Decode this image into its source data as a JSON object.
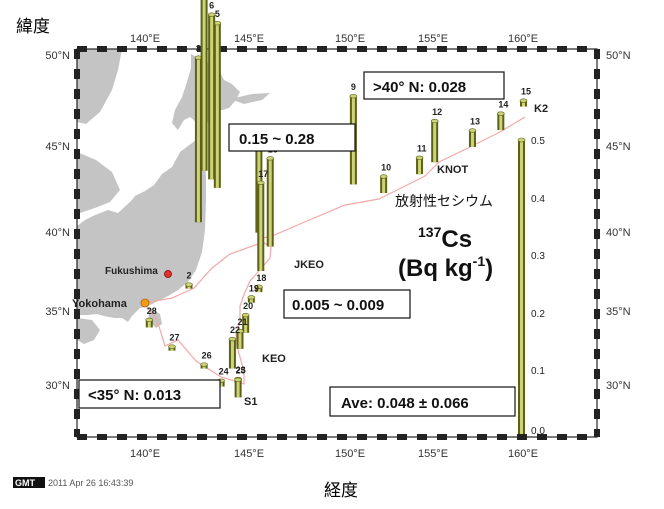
{
  "axis_titles": {
    "y": "緯度",
    "x": "経度"
  },
  "lon_ticks": [
    "140°E",
    "145°E",
    "150°E",
    "155°E",
    "160°E"
  ],
  "lat_ticks": [
    "50°N",
    "45°N",
    "40°N",
    "35°N",
    "30°N"
  ],
  "places": {
    "fukushima": "Fukushima",
    "yokohama": "Yokohama"
  },
  "region_labels": {
    "knot": "KNOT",
    "jkeo": "JKEO",
    "keo": "KEO",
    "k2": "K2",
    "s1": "S1"
  },
  "info_boxes": {
    "north": ">40°  N: 0.028",
    "mid": "0.15 ~ 0.28",
    "low": "0.005 ~ 0.009",
    "south": "<35°  N: 0.013",
    "ave": "Ave: 0.048 ± 0.066"
  },
  "legend": {
    "jp": "放射性セシウム",
    "isotope_sup": "137",
    "isotope": "Cs",
    "unit_pre": "(Bq kg",
    "unit_sup": "-1",
    "unit_post": ")"
  },
  "scale_ticks": [
    "0.5",
    "0.4",
    "0.3",
    "0.2",
    "0.1",
    "0.0"
  ],
  "footer": {
    "logo": "GMT",
    "timestamp": "2011 Apr 26 16:43:39"
  },
  "colors": {
    "bar_light": "#cdd37a",
    "bar_dark": "#5c6114",
    "track": "#f4a8a8",
    "land": "#c4c4c4",
    "frame": "#222222"
  },
  "stations": [
    {
      "id": "2",
      "lon": 142.3,
      "lat": 36.3,
      "value": 0.005
    },
    {
      "id": "3",
      "lon": 142.8,
      "lat": 40.1,
      "value": 0.28
    },
    {
      "id": "4",
      "lon": 143.1,
      "lat": 43.1,
      "value": 0.5
    },
    {
      "id": "5",
      "lon": 143.8,
      "lat": 42.1,
      "value": 0.28
    },
    {
      "id": "6",
      "lon": 143.5,
      "lat": 42.6,
      "value": 0.28
    },
    {
      "id": "7",
      "lon": 146.0,
      "lat": 39.5,
      "value": 0.15
    },
    {
      "id": "9",
      "lon": 151.0,
      "lat": 42.3,
      "value": 0.15
    },
    {
      "id": "10",
      "lon": 152.6,
      "lat": 41.8,
      "value": 0.028
    },
    {
      "id": "11",
      "lon": 154.5,
      "lat": 42.9,
      "value": 0.028
    },
    {
      "id": "12",
      "lon": 155.3,
      "lat": 43.6,
      "value": 0.07
    },
    {
      "id": "13",
      "lon": 157.3,
      "lat": 44.5,
      "value": 0.028
    },
    {
      "id": "14",
      "lon": 158.8,
      "lat": 45.5,
      "value": 0.028
    },
    {
      "id": "15",
      "lon": 160.0,
      "lat": 46.9,
      "value": 0.01
    },
    {
      "id": "16",
      "lon": 146.6,
      "lat": 38.7,
      "value": 0.15
    },
    {
      "id": "17",
      "lon": 146.1,
      "lat": 37.3,
      "value": 0.15
    },
    {
      "id": "18",
      "lon": 146.0,
      "lat": 36.1,
      "value": 0.009
    },
    {
      "id": "19",
      "lon": 145.6,
      "lat": 35.5,
      "value": 0.009
    },
    {
      "id": "20",
      "lon": 145.3,
      "lat": 33.8,
      "value": 0.03
    },
    {
      "id": "21",
      "lon": 145.0,
      "lat": 32.9,
      "value": 0.03
    },
    {
      "id": "22",
      "lon": 144.6,
      "lat": 31.8,
      "value": 0.05
    },
    {
      "id": "23",
      "lon": 144.9,
      "lat": 31.0,
      "value": 0.005
    },
    {
      "id": "24",
      "lon": 144.0,
      "lat": 30.8,
      "value": 0.01
    },
    {
      "id": "25",
      "lon": 144.9,
      "lat": 30.2,
      "value": 0.03
    },
    {
      "id": "26",
      "lon": 143.1,
      "lat": 31.8,
      "value": 0.005
    },
    {
      "id": "27",
      "lon": 141.4,
      "lat": 32.8,
      "value": 0.005
    },
    {
      "id": "28",
      "lon": 140.2,
      "lat": 34.1,
      "value": 0.013
    }
  ]
}
